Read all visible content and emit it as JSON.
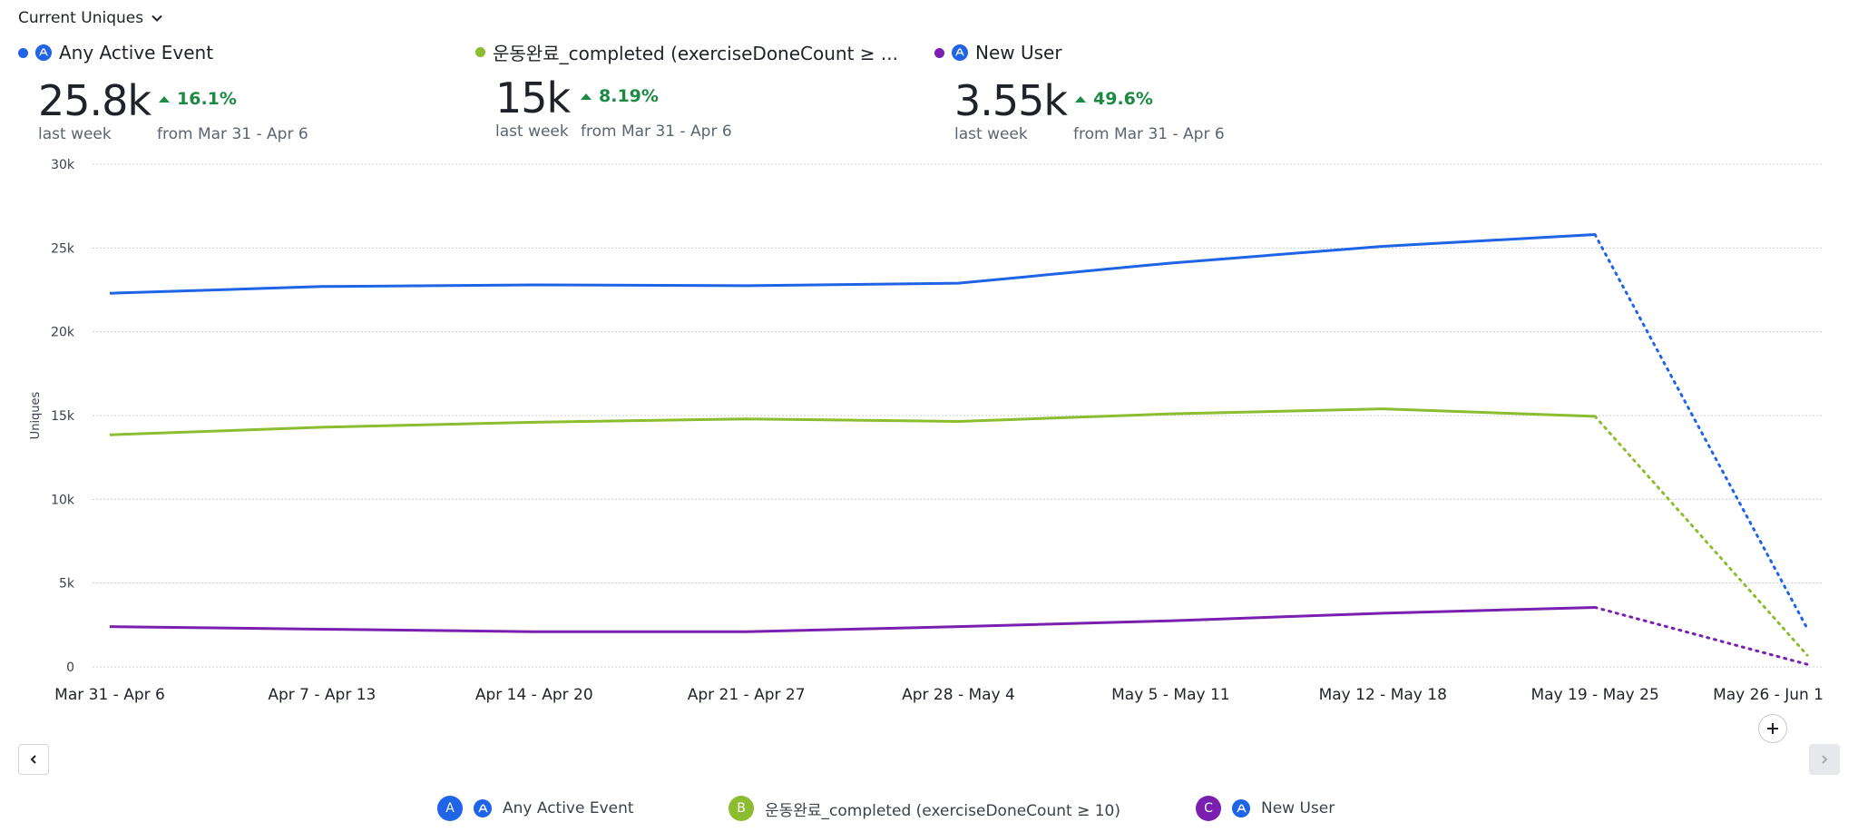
{
  "metric_selector": {
    "label": "Current Uniques"
  },
  "summary": [
    {
      "name": "Any Active Event",
      "value": "25.8k",
      "period": "last week",
      "delta": "16.1%",
      "compare": "from Mar 31 - Apr 6",
      "color": "#1f63e6",
      "has_icon": true
    },
    {
      "name": "운동완료_completed (exerciseDoneCount ≥ ...",
      "value": "15k",
      "period": "last week",
      "delta": "8.19%",
      "compare": "from Mar 31 - Apr 6",
      "color": "#8cbc2f",
      "has_icon": false
    },
    {
      "name": "New User",
      "value": "3.55k",
      "period": "last week",
      "delta": "49.6%",
      "compare": "from Mar 31 - Apr 6",
      "color": "#7a1fb0",
      "has_icon": true
    }
  ],
  "legend": [
    {
      "letter": "A",
      "label": "Any Active Event",
      "color": "#1f63e6"
    },
    {
      "letter": "B",
      "label": "운동완료_completed (exerciseDoneCount ≥ 10)",
      "color": "#8cbc2f"
    },
    {
      "letter": "C",
      "label": "New User",
      "color": "#7a1fb0"
    }
  ],
  "chart_data": {
    "type": "line",
    "ylabel": "Uniques",
    "ylim": [
      0,
      30000
    ],
    "yticks": [
      "0",
      "5k",
      "10k",
      "15k",
      "20k",
      "25k",
      "30k"
    ],
    "ytick_values": [
      0,
      5000,
      10000,
      15000,
      20000,
      25000,
      30000
    ],
    "categories": [
      "Mar 31 - Apr 6",
      "Apr 7 - Apr 13",
      "Apr 14 - Apr 20",
      "Apr 21 - Apr 27",
      "Apr 28 - May 4",
      "May 5 - May 11",
      "May 12 - May 18",
      "May 19 - May 25",
      "May 26 - Jun 1"
    ],
    "incomplete_last_point": true,
    "grid": true,
    "series": [
      {
        "name": "Any Active Event",
        "color": "#1f63e6",
        "values": [
          22300,
          22700,
          22800,
          22750,
          22900,
          24100,
          25100,
          25800,
          2300
        ]
      },
      {
        "name": "운동완료_completed (exerciseDoneCount ≥ 10)",
        "color": "#8cbc2f",
        "values": [
          13850,
          14300,
          14600,
          14800,
          14650,
          15100,
          15400,
          14950,
          700
        ]
      },
      {
        "name": "New User",
        "color": "#7a1fb0",
        "values": [
          2400,
          2250,
          2100,
          2100,
          2400,
          2750,
          3200,
          3550,
          150
        ]
      }
    ]
  },
  "icons": {
    "dropdown": "chevron-down-icon",
    "amplitude": "amplitude-logo-icon",
    "prev": "chevron-left-icon",
    "next": "chevron-right-icon",
    "add": "plus-icon"
  }
}
